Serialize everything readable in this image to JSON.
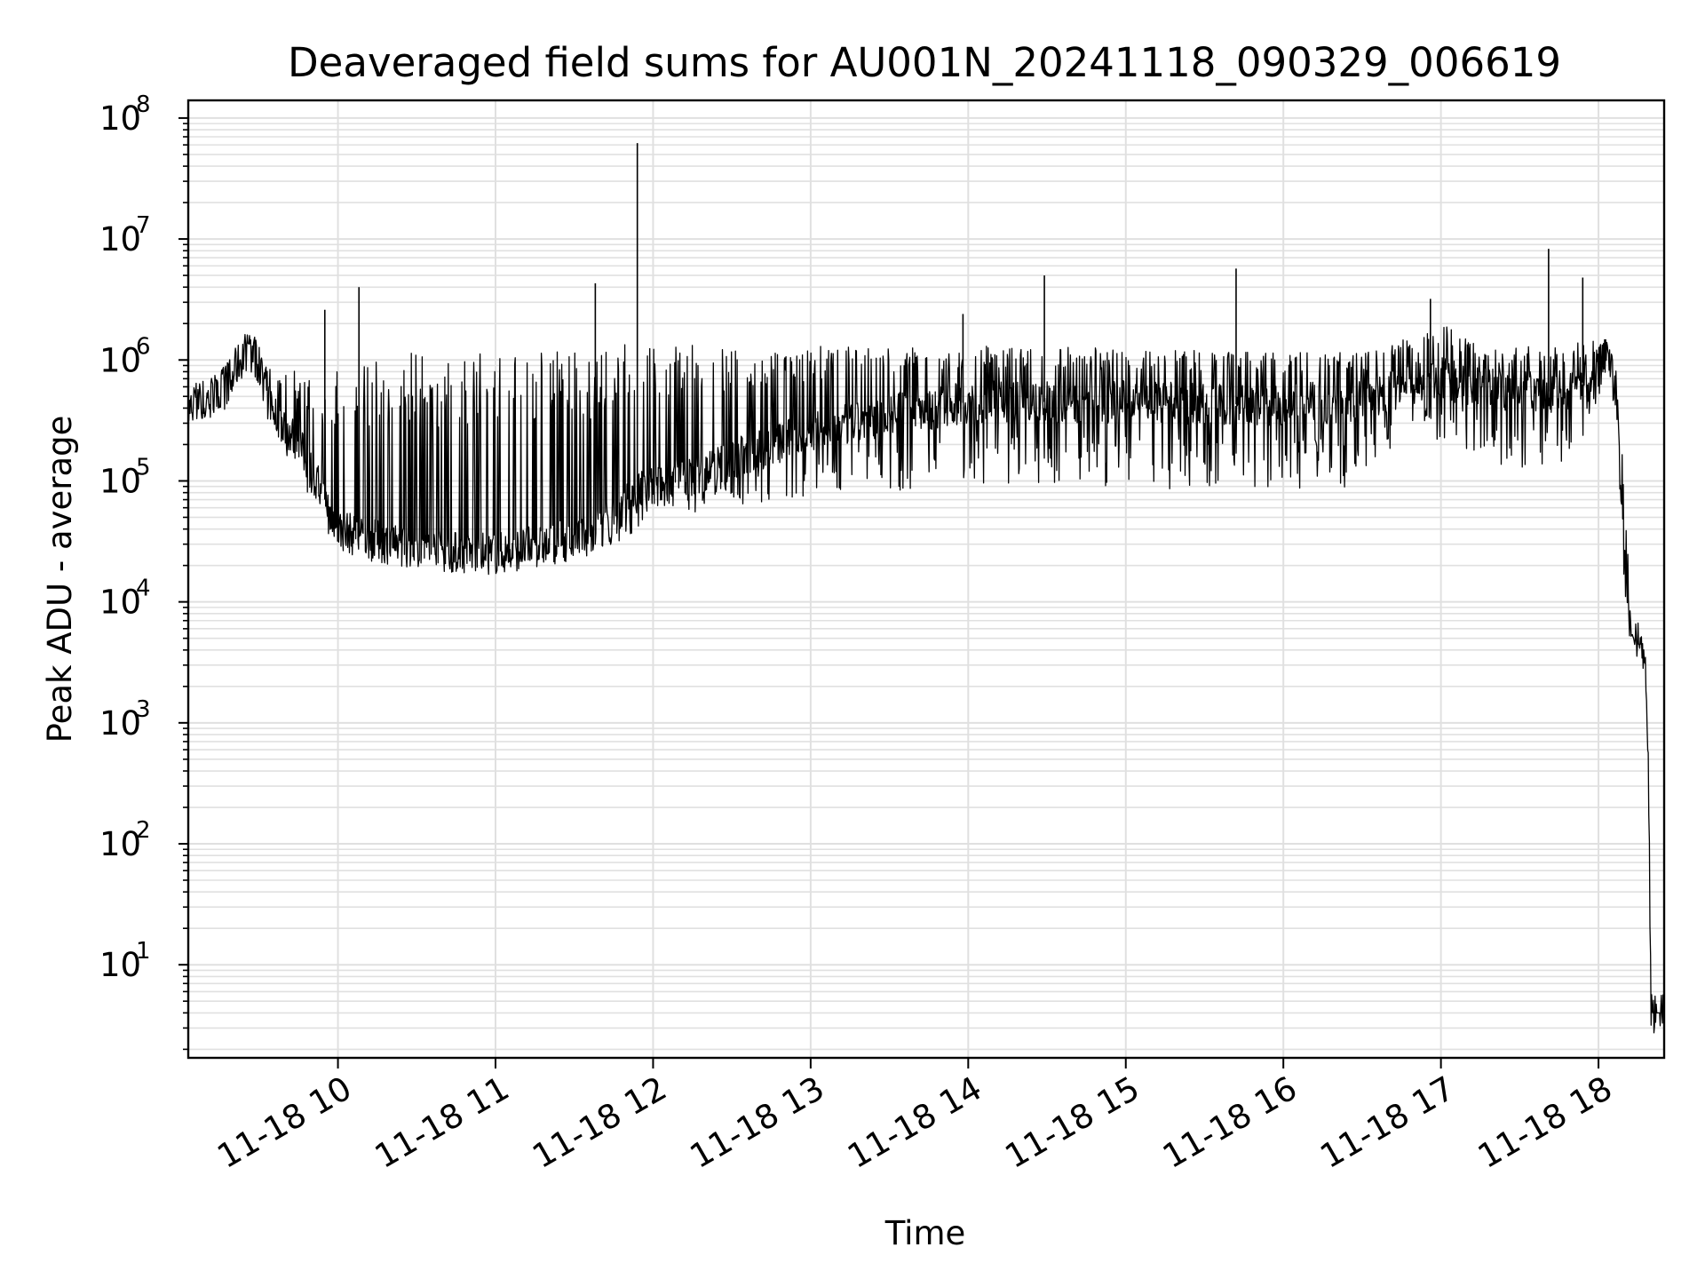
{
  "chart_data": {
    "type": "line",
    "title": "Deaveraged field sums for AU001N_20241118_090329_006619",
    "xlabel": "Time",
    "ylabel": "Peak ADU - average",
    "yscale": "log",
    "ylim": [
      1.7,
      140000000
    ],
    "xlim": [
      "2024-11-18 09:03",
      "2024-11-18 18:25"
    ],
    "grid": true,
    "line_color": "#000000",
    "grid_color": "#e0e0e0",
    "x_ticks": [
      {
        "t": "2024-11-18 10:00",
        "label": "11-18 10"
      },
      {
        "t": "2024-11-18 11:00",
        "label": "11-18 11"
      },
      {
        "t": "2024-11-18 12:00",
        "label": "11-18 12"
      },
      {
        "t": "2024-11-18 13:00",
        "label": "11-18 13"
      },
      {
        "t": "2024-11-18 14:00",
        "label": "11-18 14"
      },
      {
        "t": "2024-11-18 15:00",
        "label": "11-18 15"
      },
      {
        "t": "2024-11-18 16:00",
        "label": "11-18 16"
      },
      {
        "t": "2024-11-18 17:00",
        "label": "11-18 17"
      },
      {
        "t": "2024-11-18 18:00",
        "label": "11-18 18"
      }
    ],
    "y_ticks": [
      {
        "value": 10,
        "base": "10",
        "exp": "1"
      },
      {
        "value": 100,
        "base": "10",
        "exp": "2"
      },
      {
        "value": 1000,
        "base": "10",
        "exp": "3"
      },
      {
        "value": 10000,
        "base": "10",
        "exp": "4"
      },
      {
        "value": 100000,
        "base": "10",
        "exp": "5"
      },
      {
        "value": 1000000,
        "base": "10",
        "exp": "6"
      },
      {
        "value": 10000000,
        "base": "10",
        "exp": "7"
      },
      {
        "value": 100000000,
        "base": "10",
        "exp": "8"
      }
    ],
    "envelope": {
      "x": [
        "09:03",
        "09:15",
        "09:25",
        "09:30",
        "09:35",
        "09:45",
        "09:55",
        "10:00",
        "10:10",
        "10:30",
        "10:50",
        "11:00",
        "11:20",
        "11:35",
        "11:45",
        "11:55",
        "12:00",
        "12:15",
        "12:30",
        "13:00",
        "13:30",
        "14:00",
        "14:30",
        "15:00",
        "15:30",
        "16:00",
        "16:30",
        "16:55",
        "17:00",
        "17:15",
        "17:30",
        "17:45",
        "17:58",
        "18:03",
        "18:07",
        "18:09",
        "18:11",
        "18:13",
        "18:16",
        "18:18",
        "18:19",
        "18:20",
        "18:25"
      ],
      "high": [
        550000,
        800000,
        1500000,
        1600000,
        1000000,
        800000,
        700000,
        1000000,
        1100000,
        1200000,
        1200000,
        1200000,
        1200000,
        1300000,
        1400000,
        1400000,
        1500000,
        1400000,
        1300000,
        1300000,
        1300000,
        1300000,
        1300000,
        1250000,
        1200000,
        1150000,
        1150000,
        1700000,
        2000000,
        1300000,
        1300000,
        1300000,
        1500000,
        1500000,
        900000,
        200000,
        40000,
        9000,
        5000,
        3500,
        900,
        4,
        4
      ],
      "mid": [
        450000,
        500000,
        1200000,
        900000,
        400000,
        200000,
        70000,
        40000,
        33000,
        28000,
        25000,
        25000,
        30000,
        35000,
        50000,
        80000,
        90000,
        110000,
        150000,
        250000,
        350000,
        450000,
        450000,
        450000,
        430000,
        430000,
        450000,
        700000,
        700000,
        600000,
        550000,
        550000,
        700000,
        1200000,
        500000,
        60000,
        9000,
        6000,
        4500,
        3000,
        500,
        4,
        4
      ],
      "low": [
        300000,
        300000,
        900000,
        500000,
        250000,
        100000,
        35000,
        30000,
        25000,
        21000,
        19000,
        20000,
        21000,
        24000,
        30000,
        40000,
        45000,
        55000,
        60000,
        70000,
        80000,
        90000,
        95000,
        90000,
        80000,
        80000,
        90000,
        250000,
        200000,
        150000,
        120000,
        110000,
        300000,
        900000,
        300000,
        25000,
        7000,
        5000,
        4000,
        2500,
        300,
        4,
        4
      ]
    },
    "spikes": [
      {
        "t": "09:55",
        "value": 2600000
      },
      {
        "t": "10:08",
        "value": 4000000
      },
      {
        "t": "11:38",
        "value": 4300000
      },
      {
        "t": "11:54",
        "value": 62000000
      },
      {
        "t": "13:58",
        "value": 2400000
      },
      {
        "t": "14:29",
        "value": 5000000
      },
      {
        "t": "15:42",
        "value": 5700000
      },
      {
        "t": "16:56",
        "value": 3200000
      },
      {
        "t": "17:41",
        "value": 8300000
      },
      {
        "t": "17:54",
        "value": 4800000
      }
    ]
  }
}
